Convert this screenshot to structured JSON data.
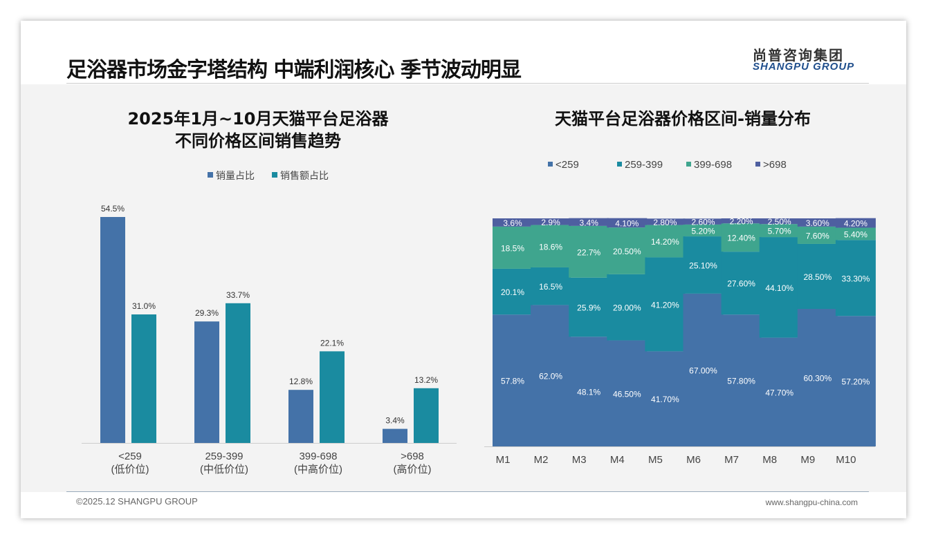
{
  "header": {
    "title": "足浴器市场金字塔结构 中端利润核心 季节波动明显",
    "logo_cn": "尚普咨询集团",
    "logo_en": "SHANGPU GROUP"
  },
  "footer": {
    "copyright": "©2025.12 SHANGPU GROUP",
    "url": "www.shangpu-china.com"
  },
  "chart_data": [
    {
      "type": "bar",
      "title": "2025年1月~10月天猫平台足浴器 不同价格区间销售趋势",
      "title_lines": [
        "2025年1月~10月天猫平台足浴器",
        "不同价格区间销售趋势"
      ],
      "categories": [
        "<259",
        "259-399",
        "399-698",
        ">698"
      ],
      "sublabels": [
        "(低价位)",
        "(中低价位)",
        "(中高价位)",
        "(高价位)"
      ],
      "series": [
        {
          "name": "销量占比",
          "color": "#4472a8",
          "values": [
            54.5,
            29.3,
            12.8,
            3.4
          ]
        },
        {
          "name": "销售额占比",
          "color": "#1a8ba0",
          "values": [
            31.0,
            33.7,
            22.1,
            13.2
          ]
        }
      ],
      "ylim": [
        0,
        60
      ],
      "legend": "top"
    },
    {
      "type": "bar",
      "stacked": true,
      "title": "天猫平台足浴器价格区间-销量分布",
      "categories": [
        "M1",
        "M2",
        "M3",
        "M4",
        "M5",
        "M6",
        "M7",
        "M8",
        "M9",
        "M10"
      ],
      "series": [
        {
          "name": "<259",
          "color": "#4472a8",
          "values": [
            57.8,
            62.0,
            48.1,
            46.5,
            41.7,
            67.0,
            57.8,
            47.7,
            60.3,
            57.2
          ],
          "labels": [
            "57.8%",
            "62.0%",
            "48.1%",
            "46.50%",
            "41.70%",
            "67.00%",
            "57.80%",
            "47.70%",
            "60.30%",
            "57.20%"
          ]
        },
        {
          "name": "259-399",
          "color": "#1a8ba0",
          "values": [
            20.1,
            16.5,
            25.9,
            29.0,
            41.2,
            25.1,
            27.6,
            44.1,
            28.5,
            33.3
          ],
          "labels": [
            "20.1%",
            "16.5%",
            "25.9%",
            "29.00%",
            "41.20%",
            "25.10%",
            "27.60%",
            "44.10%",
            "28.50%",
            "33.30%"
          ]
        },
        {
          "name": "399-698",
          "color": "#3fa58e",
          "values": [
            18.5,
            18.6,
            22.7,
            20.5,
            14.2,
            5.2,
            12.4,
            5.7,
            7.6,
            5.4
          ],
          "labels": [
            "18.5%",
            "18.6%",
            "22.7%",
            "20.50%",
            "14.20%",
            "5.20%",
            "12.40%",
            "5.70%",
            "7.60%",
            "5.40%"
          ]
        },
        {
          "name": ">698",
          "color": "#4e5fa0",
          "values": [
            3.6,
            2.9,
            3.4,
            4.1,
            2.8,
            2.6,
            2.2,
            2.5,
            3.6,
            4.2
          ],
          "labels": [
            "3.6%",
            "2.9%",
            "3.4%",
            "4.10%",
            "2.80%",
            "2.60%",
            "2.20%",
            "2.50%",
            "3.60%",
            "4.20%"
          ]
        }
      ],
      "ylim": [
        0,
        100
      ],
      "legend": "top"
    }
  ]
}
